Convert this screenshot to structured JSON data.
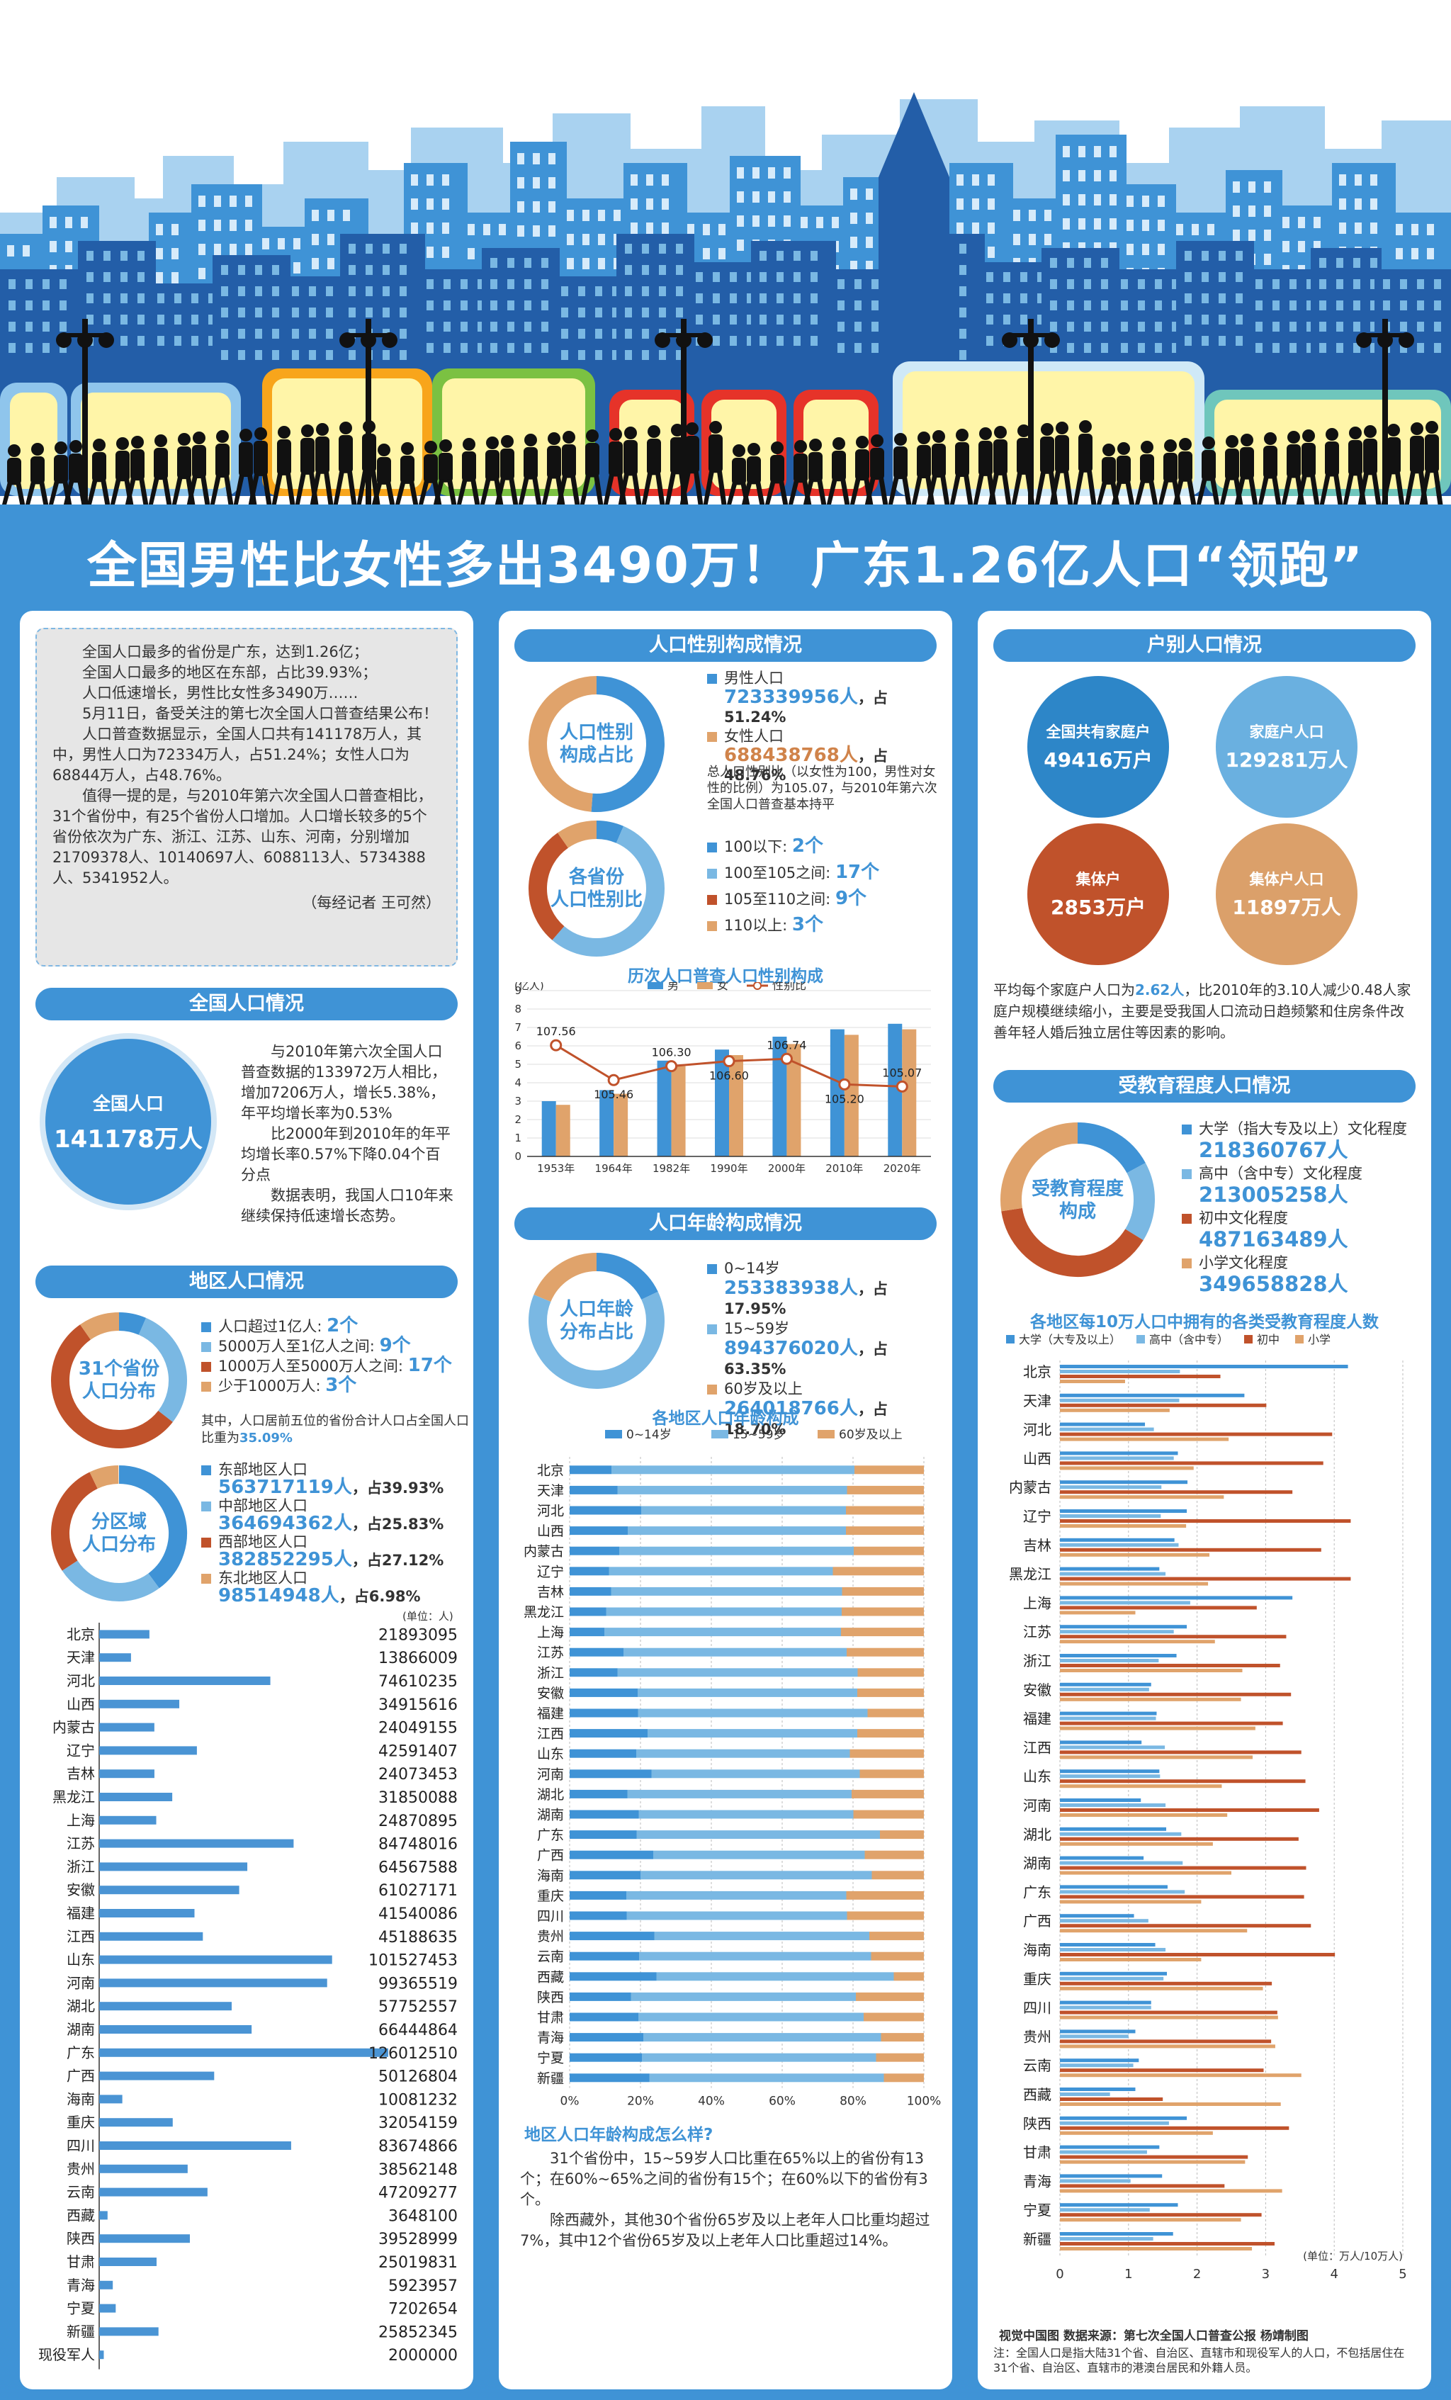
{
  "headline": "全国男性比女性多出3490万！ 广东1.26亿人口“领跑”",
  "intro": {
    "bullets": [
      "全国人口最多的省份是广东，达到1.26亿；",
      "全国人口最多的地区在东部，占比39.93%；",
      "人口低速增长，男性比女性多3490万……"
    ],
    "paras": [
      "5月11日，备受关注的第七次全国人口普查结果公布！",
      "人口普查数据显示，全国人口共有141178万人，其中，男性人口为72334万人，占51.24%；女性人口为68844万人，占48.76%。",
      "值得一提的是，与2010年第六次全国人口普查相比，31个省份中，有25个省份人口增加。人口增长较多的5个省份依次为广东、浙江、江苏、山东、河南，分别增加21709378人、10140697人、6088113人、5734388人、5341952人。"
    ],
    "byline": "（每经记者 王可然）"
  },
  "national": {
    "title": "全国人口情况",
    "circle_label": "全国人口",
    "circle_value": "141178万人",
    "text": [
      "与2010年第六次全国人口普查数据的133972万人相比，增加7206万人，增长5.38%，年平均增长率为0.53%",
      "比2000年到2010年的年平均增长率0.57%下降0.04个百分点",
      "数据表明，我国人口10年来继续保持低速增长态势。"
    ]
  },
  "region": {
    "title": "地区人口情况",
    "ring1_label": [
      "31个省份",
      "人口分布"
    ],
    "ring1_items": [
      {
        "label": "人口超过1亿人:",
        "value": "2个",
        "color": "#3f93d6",
        "frac": 0.065
      },
      {
        "label": "5000万人至1亿人之间:",
        "value": "9个",
        "color": "#7ab8e3",
        "frac": 0.29
      },
      {
        "label": "1000万人至5000万人之间:",
        "value": "17个",
        "color": "#c0522b",
        "frac": 0.548
      },
      {
        "label": "少于1000万人:",
        "value": "3个",
        "color": "#e0a36b",
        "frac": 0.097
      }
    ],
    "ring1_note_a": "其中，人口居前五位的省份合计人口占全国人口比重为",
    "ring1_note_b": "35.09%",
    "ring2_label": [
      "分区域",
      "人口分布"
    ],
    "ring2_items": [
      {
        "label": "东部地区人口",
        "value": "563717119人",
        "pct": "，占39.93%",
        "color": "#3f93d6",
        "frac": 0.3993
      },
      {
        "label": "中部地区人口",
        "value": "364694362人",
        "pct": "，占25.83%",
        "color": "#7ab8e3",
        "frac": 0.2583
      },
      {
        "label": "西部地区人口",
        "value": "382852295人",
        "pct": "，占27.12%",
        "color": "#c0522b",
        "frac": 0.2712
      },
      {
        "label": "东北地区人口",
        "value": "98514948人",
        "pct": "，占6.98%",
        "color": "#e0a36b",
        "frac": 0.0698
      }
    ],
    "unit": "(单位：人)"
  },
  "province_pop": {
    "type": "bar",
    "categories": [
      "北京",
      "天津",
      "河北",
      "山西",
      "内蒙古",
      "辽宁",
      "吉林",
      "黑龙江",
      "上海",
      "江苏",
      "浙江",
      "安徽",
      "福建",
      "江西",
      "山东",
      "河南",
      "湖北",
      "湖南",
      "广东",
      "广西",
      "海南",
      "重庆",
      "四川",
      "贵州",
      "云南",
      "西藏",
      "陕西",
      "甘肃",
      "青海",
      "宁夏",
      "新疆",
      "现役军人"
    ],
    "values": [
      21893095,
      13866009,
      74610235,
      34915616,
      24049155,
      42591407,
      24073453,
      31850088,
      24870895,
      84748016,
      64567588,
      61027171,
      41540086,
      45188635,
      101527453,
      99365519,
      57752557,
      66444864,
      126012510,
      50126804,
      10081232,
      32054159,
      83674866,
      38562148,
      47209277,
      3648100,
      39528999,
      25019831,
      5923957,
      7202654,
      25852345,
      2000000
    ]
  },
  "gender": {
    "title": "人口性别构成情况",
    "ring_label": [
      "人口性别",
      "构成占比"
    ],
    "male_label": "男性人口",
    "male_value": "723339956人",
    "male_pct": "，占51.24%",
    "female_label": "女性人口",
    "female_value": "688438768人",
    "female_pct": "，占48.76%",
    "male_frac": 0.5124,
    "male_color": "#3f93d6",
    "female_color": "#e0a36b",
    "note": "总人口性别比（以女性为100，男性对女性的比例）为105.07，与2010年第六次全国人口普查基本持平",
    "ring2_label": [
      "各省份",
      "人口性别比"
    ],
    "ring2_items": [
      {
        "label": "100以下:",
        "value": "2个",
        "color": "#3f93d6",
        "frac": 0.065
      },
      {
        "label": "100至105之间:",
        "value": "17个",
        "color": "#7ab8e3",
        "frac": 0.548
      },
      {
        "label": "105至110之间:",
        "value": "9个",
        "color": "#c0522b",
        "frac": 0.29
      },
      {
        "label": "110以上:",
        "value": "3个",
        "color": "#e0a36b",
        "frac": 0.097
      }
    ]
  },
  "census_chart": {
    "type": "bar",
    "title": "历次人口普查人口性别构成",
    "yunit": "(亿人)",
    "categories": [
      "1953年",
      "1964年",
      "1982年",
      "1990年",
      "2000年",
      "2010年",
      "2020年"
    ],
    "series": [
      {
        "name": "男",
        "color": "#3f93d6",
        "values": [
          3.0,
          3.6,
          5.2,
          5.8,
          6.5,
          6.9,
          7.2
        ]
      },
      {
        "name": "女",
        "color": "#e0a36b",
        "values": [
          2.8,
          3.4,
          4.9,
          5.5,
          6.1,
          6.6,
          6.9
        ]
      }
    ],
    "line": {
      "name": "性别比",
      "color": "#c0522b",
      "values": [
        107.56,
        105.46,
        106.3,
        106.6,
        106.74,
        105.2,
        105.07
      ]
    },
    "ylim": [
      0,
      9
    ]
  },
  "age": {
    "title": "人口年龄构成情况",
    "ring_label": [
      "人口年龄",
      "分布占比"
    ],
    "items": [
      {
        "label": "0~14岁",
        "value": "253383938人",
        "pct": "，占17.95%",
        "color": "#3f93d6",
        "frac": 0.1795
      },
      {
        "label": "15~59岁",
        "value": "894376020人",
        "pct": "，占63.35%",
        "color": "#7ab8e3",
        "frac": 0.6335
      },
      {
        "label": "60岁及以上",
        "value": "264018766人",
        "pct": "，占18.70%",
        "color": "#e0a36b",
        "frac": 0.187
      }
    ]
  },
  "age_chart": {
    "type": "bar",
    "title": "各地区人口年龄构成",
    "series_names": [
      "0~14岁",
      "15~59岁",
      "60岁及以上"
    ],
    "colors": [
      "#3f93d6",
      "#7ab8e3",
      "#e0a36b"
    ],
    "categories": [
      "北京",
      "天津",
      "河北",
      "山西",
      "内蒙古",
      "辽宁",
      "吉林",
      "黑龙江",
      "上海",
      "江苏",
      "浙江",
      "安徽",
      "福建",
      "江西",
      "山东",
      "河南",
      "湖北",
      "湖南",
      "广东",
      "广西",
      "海南",
      "重庆",
      "四川",
      "贵州",
      "云南",
      "西藏",
      "陕西",
      "甘肃",
      "青海",
      "宁夏",
      "新疆"
    ],
    "young": [
      11.8,
      13.5,
      20.2,
      16.4,
      14.0,
      11.1,
      11.7,
      10.3,
      9.8,
      15.2,
      13.5,
      19.2,
      19.3,
      22.0,
      18.8,
      23.1,
      16.3,
      19.5,
      18.9,
      23.6,
      20.0,
      16.0,
      16.1,
      23.9,
      19.6,
      24.5,
      17.3,
      19.4,
      20.8,
      20.4,
      22.5
    ],
    "old": [
      19.6,
      21.7,
      22.0,
      22.0,
      19.8,
      25.7,
      23.1,
      23.2,
      23.4,
      21.8,
      18.7,
      18.8,
      15.9,
      18.8,
      20.9,
      18.1,
      20.4,
      19.9,
      12.4,
      16.7,
      14.7,
      21.9,
      21.7,
      15.4,
      14.9,
      8.5,
      19.2,
      17.0,
      12.1,
      13.5,
      11.3
    ],
    "ticks": [
      "0%",
      "20%",
      "40%",
      "60%",
      "80%",
      "100%"
    ]
  },
  "age_text": {
    "title": "地区人口年龄构成怎么样?",
    "paras": [
      "31个省份中，15~59岁人口比重在65%以上的省份有13个；在60%~65%之间的省份有15个；在60%以下的省份有3个。",
      "除西藏外，其他30个省份65岁及以上老年人口比重均超过7%，其中12个省份65岁及以上老年人口比重超过14%。"
    ]
  },
  "household": {
    "title": "户别人口情况",
    "circles": [
      {
        "label": "全国共有家庭户",
        "value": "49416万户",
        "color": "#2d86c8"
      },
      {
        "label": "家庭户人口",
        "value": "129281万人",
        "color": "#6ab0e0"
      },
      {
        "label": "集体户",
        "value": "2853万户",
        "color": "#c0522b"
      },
      {
        "label": "集体户人口",
        "value": "11897万人",
        "color": "#dba06a"
      }
    ],
    "text_a": "平均每个家庭户人口为",
    "text_b": "2.62人",
    "text_c": "，比2010年的3.10人减少0.48人家庭户规模继续缩小，主要是受我国人口流动日趋频繁和住房条件改善年轻人婚后独立居住等因素的影响。"
  },
  "education": {
    "title": "受教育程度人口情况",
    "ring_label": [
      "受教育程度",
      "构成"
    ],
    "items": [
      {
        "label": "大学（指大专及以上）文化程度",
        "value": "218360767人",
        "color": "#3f93d6",
        "frac": 0.171
      },
      {
        "label": "高中（含中专）文化程度",
        "value": "213005258人",
        "color": "#7ab8e3",
        "frac": 0.167
      },
      {
        "label": "初中文化程度",
        "value": "487163489人",
        "color": "#c0522b",
        "frac": 0.388
      },
      {
        "label": "小学文化程度",
        "value": "349658828人",
        "color": "#e0a36b",
        "frac": 0.274
      }
    ]
  },
  "edu_chart": {
    "type": "bar",
    "title": "各地区每10万人口中拥有的各类受教育程度人数",
    "series_names": [
      "大学（大专及以上）",
      "高中（含中专）",
      "初中",
      "小学"
    ],
    "colors": [
      "#3f93d6",
      "#7ab8e3",
      "#c0522b",
      "#e0a36b"
    ],
    "unit": "(单位：万人/10万人)",
    "categories": [
      "北京",
      "天津",
      "河北",
      "山西",
      "内蒙古",
      "辽宁",
      "吉林",
      "黑龙江",
      "上海",
      "江苏",
      "浙江",
      "安徽",
      "福建",
      "江西",
      "山东",
      "河南",
      "湖北",
      "湖南",
      "广东",
      "广西",
      "海南",
      "重庆",
      "四川",
      "贵州",
      "云南",
      "西藏",
      "陕西",
      "甘肃",
      "青海",
      "宁夏",
      "新疆"
    ],
    "univ": [
      4.2,
      2.69,
      1.24,
      1.72,
      1.86,
      1.85,
      1.67,
      1.45,
      3.39,
      1.85,
      1.7,
      1.33,
      1.41,
      1.19,
      1.45,
      1.18,
      1.55,
      1.22,
      1.57,
      1.08,
      1.39,
      1.56,
      1.33,
      1.1,
      1.15,
      1.1,
      1.85,
      1.45,
      1.49,
      1.72,
      1.65
    ],
    "high": [
      1.75,
      1.74,
      1.37,
      1.66,
      1.48,
      1.47,
      1.73,
      1.54,
      1.9,
      1.66,
      1.44,
      1.3,
      1.4,
      1.53,
      1.46,
      1.54,
      1.77,
      1.79,
      1.82,
      1.29,
      1.54,
      1.51,
      1.33,
      1.0,
      1.07,
      0.73,
      1.59,
      1.27,
      1.03,
      1.31,
      1.36
    ],
    "mid": [
      2.34,
      3.01,
      3.97,
      3.84,
      3.39,
      4.24,
      3.81,
      4.24,
      2.87,
      3.3,
      3.21,
      3.37,
      3.25,
      3.52,
      3.58,
      3.78,
      3.48,
      3.59,
      3.56,
      3.66,
      4.01,
      3.09,
      3.17,
      3.08,
      2.97,
      1.5,
      3.34,
      2.74,
      2.4,
      2.94,
      3.13
    ],
    "prim": [
      0.95,
      1.6,
      2.46,
      1.95,
      2.39,
      1.84,
      2.18,
      2.16,
      1.1,
      2.26,
      2.66,
      2.64,
      2.85,
      2.81,
      2.36,
      2.44,
      2.23,
      2.5,
      2.06,
      2.73,
      2.06,
      2.96,
      3.18,
      3.14,
      3.52,
      3.22,
      2.23,
      2.7,
      3.24,
      2.64,
      2.8
    ],
    "ticks": [
      "0",
      "1",
      "2",
      "3",
      "4",
      "5"
    ],
    "xmax": 5
  },
  "footer": {
    "source": "视觉中国图  数据来源：第七次全国人口普查公报  杨靖制图",
    "note": "注：全国人口是指大陆31个省、自治区、直辖市和现役军人的人口，不包括居住在31个省、自治区、直辖市的港澳台居民和外籍人员。"
  }
}
